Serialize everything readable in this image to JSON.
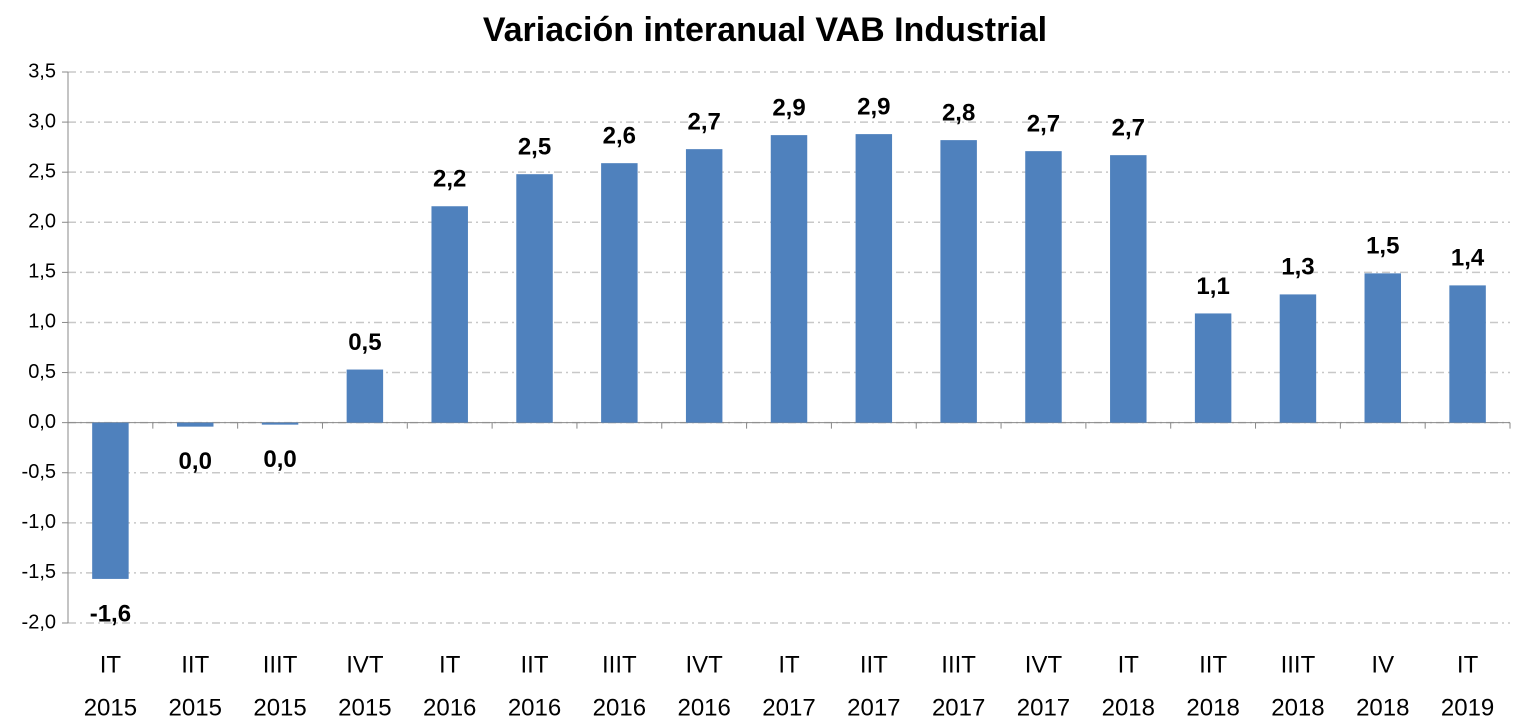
{
  "chart_data": {
    "type": "bar",
    "title": "Variación interanual VAB Industrial",
    "categories": [
      [
        "IT",
        "2015"
      ],
      [
        "IIT",
        "2015"
      ],
      [
        "IIIT",
        "2015"
      ],
      [
        "IVT",
        "2015"
      ],
      [
        "IT",
        "2016"
      ],
      [
        "IIT",
        "2016"
      ],
      [
        "IIIT",
        "2016"
      ],
      [
        "IVT",
        "2016"
      ],
      [
        "IT",
        "2017"
      ],
      [
        "IIT",
        "2017"
      ],
      [
        "IIIT",
        "2017"
      ],
      [
        "IVT",
        "2017"
      ],
      [
        "IT",
        "2018"
      ],
      [
        "IIT",
        "2018"
      ],
      [
        "IIIT",
        "2018"
      ],
      [
        "IV",
        "2018"
      ],
      [
        "IT",
        "2019"
      ]
    ],
    "values": [
      -1.56,
      -0.04,
      -0.02,
      0.53,
      2.16,
      2.48,
      2.59,
      2.73,
      2.87,
      2.88,
      2.82,
      2.71,
      2.67,
      1.09,
      1.28,
      1.49,
      1.37
    ],
    "value_labels": [
      "-1,6",
      "0,0",
      "0,0",
      "0,5",
      "2,2",
      "2,5",
      "2,6",
      "2,7",
      "2,9",
      "2,9",
      "2,8",
      "2,7",
      "2,7",
      "1,1",
      "1,3",
      "1,5",
      "1,4"
    ],
    "color": "#4f81bd",
    "ylim": [
      -2.0,
      3.5
    ],
    "yticks": [
      {
        "value": -2.0,
        "label": "-2,0"
      },
      {
        "value": -1.5,
        "label": "-1,5"
      },
      {
        "value": -1.0,
        "label": "-1,0"
      },
      {
        "value": -0.5,
        "label": "-0,5"
      },
      {
        "value": 0.0,
        "label": "0,0"
      },
      {
        "value": 0.5,
        "label": "0,5"
      },
      {
        "value": 1.0,
        "label": "1,0"
      },
      {
        "value": 1.5,
        "label": "1,5"
      },
      {
        "value": 2.0,
        "label": "2,0"
      },
      {
        "value": 2.5,
        "label": "2,5"
      },
      {
        "value": 3.0,
        "label": "3,0"
      },
      {
        "value": 3.5,
        "label": "3,5"
      }
    ],
    "grid": true
  }
}
